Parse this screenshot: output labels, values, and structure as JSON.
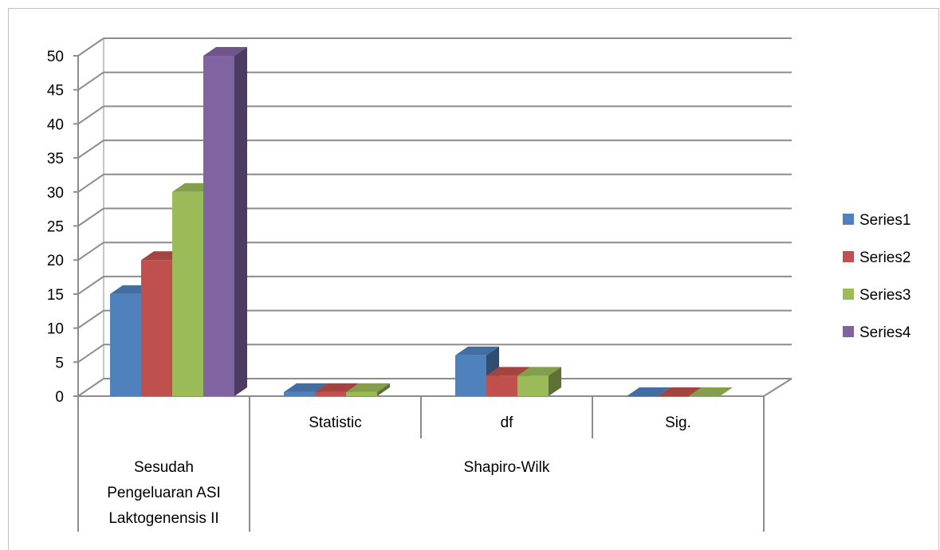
{
  "chart_data": {
    "type": "bar",
    "categories": [
      "Sesudah Pengeluaran ASI Laktogenensis II",
      "Statistic",
      "df",
      "Sig."
    ],
    "category_label_lines": [
      [
        "Sesudah",
        "Pengeluaran ASI",
        "Laktogenensis II"
      ],
      [
        "Statistic"
      ],
      [
        "df"
      ],
      [
        "Sig."
      ]
    ],
    "group_label": "Shapiro-Wilk",
    "series": [
      {
        "name": "Series1",
        "values": [
          15,
          0.6,
          6,
          0
        ]
      },
      {
        "name": "Series2",
        "values": [
          20,
          0.6,
          3,
          0
        ]
      },
      {
        "name": "Series3",
        "values": [
          30,
          0.6,
          3,
          0
        ]
      },
      {
        "name": "Series4",
        "values": [
          50,
          null,
          null,
          null
        ]
      }
    ],
    "y_ticks": [
      "0",
      "5",
      "10",
      "15",
      "20",
      "25",
      "30",
      "35",
      "40",
      "45",
      "50"
    ],
    "ylim": [
      0,
      50
    ],
    "grid": true,
    "legend_position": "right",
    "colors": {
      "Series1": "#4f81bd",
      "Series2": "#c0504d",
      "Series3": "#9bbb59",
      "Series4": "#8064a2"
    }
  }
}
